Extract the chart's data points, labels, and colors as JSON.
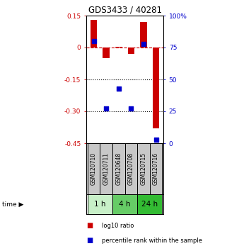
{
  "title": "GDS3433 / 40281",
  "samples": [
    "GSM120710",
    "GSM120711",
    "GSM120648",
    "GSM120708",
    "GSM120715",
    "GSM120716"
  ],
  "log10_ratio": [
    0.13,
    -0.05,
    0.003,
    -0.03,
    0.12,
    -0.38
  ],
  "percentile_rank": [
    80,
    27,
    43,
    27,
    78,
    3
  ],
  "ylim_left": [
    -0.45,
    0.15
  ],
  "ylim_right": [
    0,
    100
  ],
  "yticks_left": [
    0.15,
    0.0,
    -0.15,
    -0.3,
    -0.45
  ],
  "yticks_right": [
    100,
    75,
    50,
    25,
    0
  ],
  "ytick_labels_left": [
    "0.15",
    "0",
    "-0.15",
    "-0.30",
    "-0.45"
  ],
  "ytick_labels_right": [
    "100%",
    "75",
    "50",
    "25",
    "0"
  ],
  "hlines": [
    -0.15,
    -0.3
  ],
  "red_color": "#cc0000",
  "blue_color": "#0000cc",
  "bar_width": 0.55,
  "time_groups": [
    {
      "label": "1 h",
      "cols": [
        0,
        1
      ],
      "color": "#c8f0c8"
    },
    {
      "label": "4 h",
      "cols": [
        2,
        3
      ],
      "color": "#66cc66"
    },
    {
      "label": "24 h",
      "cols": [
        4,
        5
      ],
      "color": "#33bb33"
    }
  ],
  "legend_red": "log10 ratio",
  "legend_blue": "percentile rank within the sample",
  "time_label": "time",
  "bg_color": "#c8c8c8"
}
